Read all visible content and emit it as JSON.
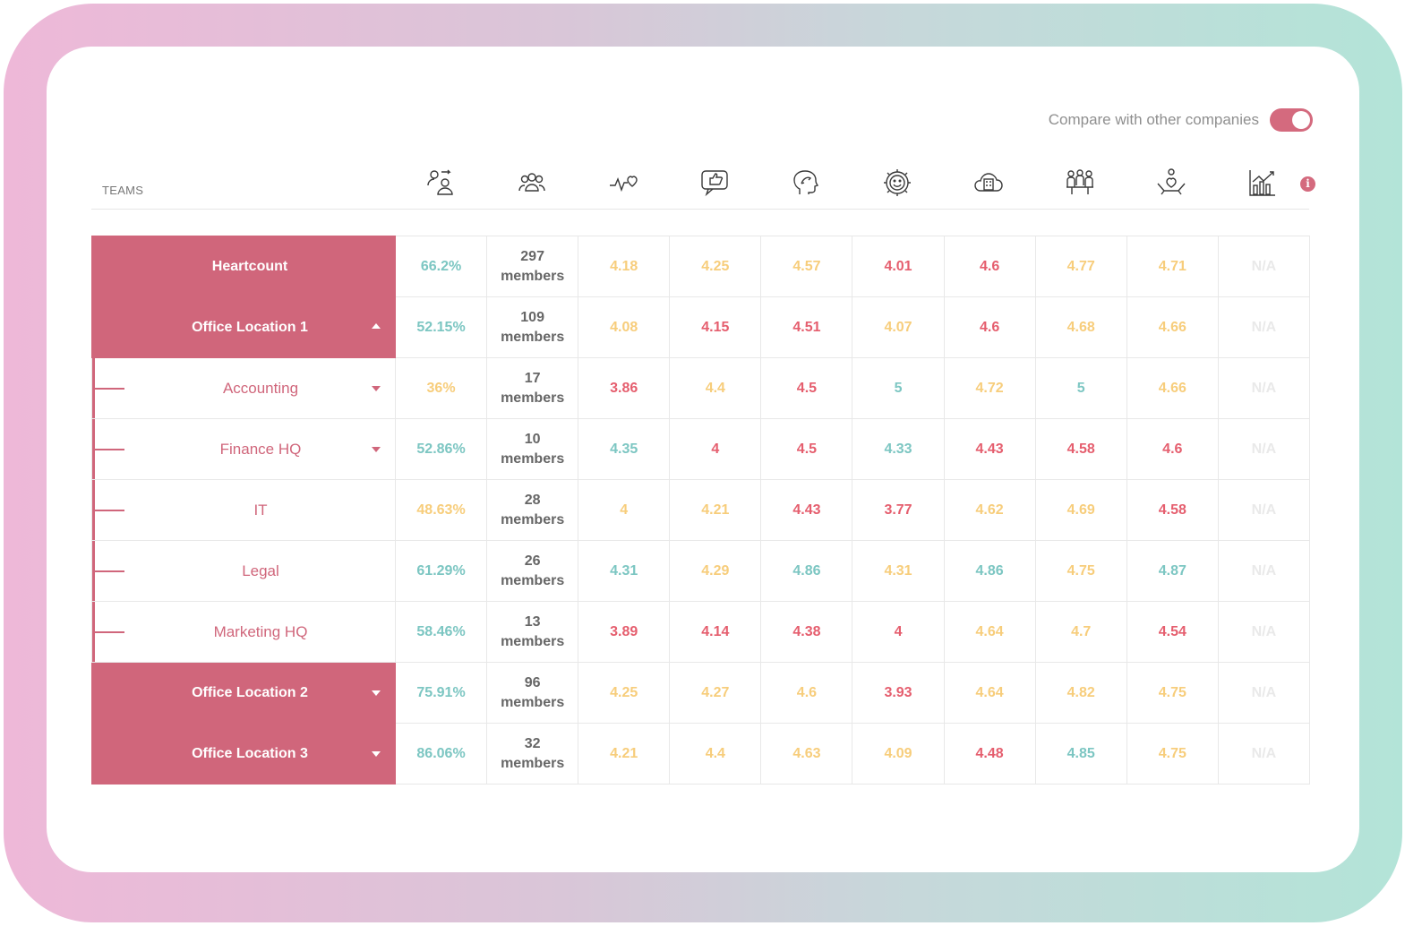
{
  "compare": {
    "label": "Compare with other companies",
    "enabled": true
  },
  "header": {
    "teams_label": "TEAMS"
  },
  "icons": [
    "participation-icon",
    "members-icon",
    "heartbeat-icon",
    "feedback-icon",
    "mind-icon",
    "satisfaction-gear-icon",
    "workplace-cloud-icon",
    "team-meeting-icon",
    "wellbeing-hands-icon",
    "growth-chart-icon"
  ],
  "colors": {
    "accent": "#d0667b",
    "teal": "#7cc6c2",
    "yellow": "#f7cd7b",
    "red": "#e55e6e"
  },
  "rows": [
    {
      "name": "Heartcount",
      "type": "group",
      "caret": "none",
      "participation": "66.2%",
      "participation_color": "teal",
      "members_count": "297",
      "members_word": "members",
      "scores": [
        [
          "4.18",
          "yellow"
        ],
        [
          "4.25",
          "yellow"
        ],
        [
          "4.57",
          "yellow"
        ],
        [
          "4.01",
          "red"
        ],
        [
          "4.6",
          "red"
        ],
        [
          "4.77",
          "yellow"
        ],
        [
          "4.71",
          "yellow"
        ],
        [
          "N/A",
          "na"
        ]
      ]
    },
    {
      "name": "Office Location 1",
      "type": "group",
      "caret": "up",
      "participation": "52.15%",
      "participation_color": "teal",
      "members_count": "109",
      "members_word": "members",
      "scores": [
        [
          "4.08",
          "yellow"
        ],
        [
          "4.15",
          "red"
        ],
        [
          "4.51",
          "red"
        ],
        [
          "4.07",
          "yellow"
        ],
        [
          "4.6",
          "red"
        ],
        [
          "4.68",
          "yellow"
        ],
        [
          "4.66",
          "yellow"
        ],
        [
          "N/A",
          "na"
        ]
      ]
    },
    {
      "name": "Accounting",
      "type": "child",
      "caret": "down",
      "participation": "36%",
      "participation_color": "yellow",
      "members_count": "17",
      "members_word": "members",
      "scores": [
        [
          "3.86",
          "red"
        ],
        [
          "4.4",
          "yellow"
        ],
        [
          "4.5",
          "red"
        ],
        [
          "5",
          "teal"
        ],
        [
          "4.72",
          "yellow"
        ],
        [
          "5",
          "teal"
        ],
        [
          "4.66",
          "yellow"
        ],
        [
          "N/A",
          "na"
        ]
      ]
    },
    {
      "name": "Finance HQ",
      "type": "child",
      "caret": "down",
      "participation": "52.86%",
      "participation_color": "teal",
      "members_count": "10",
      "members_word": "members",
      "scores": [
        [
          "4.35",
          "teal"
        ],
        [
          "4",
          "red"
        ],
        [
          "4.5",
          "red"
        ],
        [
          "4.33",
          "teal"
        ],
        [
          "4.43",
          "red"
        ],
        [
          "4.58",
          "red"
        ],
        [
          "4.6",
          "red"
        ],
        [
          "N/A",
          "na"
        ]
      ]
    },
    {
      "name": "IT",
      "type": "child",
      "caret": "none",
      "participation": "48.63%",
      "participation_color": "yellow",
      "members_count": "28",
      "members_word": "members",
      "scores": [
        [
          "4",
          "yellow"
        ],
        [
          "4.21",
          "yellow"
        ],
        [
          "4.43",
          "red"
        ],
        [
          "3.77",
          "red"
        ],
        [
          "4.62",
          "yellow"
        ],
        [
          "4.69",
          "yellow"
        ],
        [
          "4.58",
          "red"
        ],
        [
          "N/A",
          "na"
        ]
      ]
    },
    {
      "name": "Legal",
      "type": "child",
      "caret": "none",
      "participation": "61.29%",
      "participation_color": "teal",
      "members_count": "26",
      "members_word": "members",
      "scores": [
        [
          "4.31",
          "teal"
        ],
        [
          "4.29",
          "yellow"
        ],
        [
          "4.86",
          "teal"
        ],
        [
          "4.31",
          "yellow"
        ],
        [
          "4.86",
          "teal"
        ],
        [
          "4.75",
          "yellow"
        ],
        [
          "4.87",
          "teal"
        ],
        [
          "N/A",
          "na"
        ]
      ]
    },
    {
      "name": "Marketing HQ",
      "type": "child",
      "caret": "none",
      "participation": "58.46%",
      "participation_color": "teal",
      "members_count": "13",
      "members_word": "members",
      "scores": [
        [
          "3.89",
          "red"
        ],
        [
          "4.14",
          "red"
        ],
        [
          "4.38",
          "red"
        ],
        [
          "4",
          "red"
        ],
        [
          "4.64",
          "yellow"
        ],
        [
          "4.7",
          "yellow"
        ],
        [
          "4.54",
          "red"
        ],
        [
          "N/A",
          "na"
        ]
      ]
    },
    {
      "name": "Office Location 2",
      "type": "group",
      "caret": "down",
      "participation": "75.91%",
      "participation_color": "teal",
      "members_count": "96",
      "members_word": "members",
      "scores": [
        [
          "4.25",
          "yellow"
        ],
        [
          "4.27",
          "yellow"
        ],
        [
          "4.6",
          "yellow"
        ],
        [
          "3.93",
          "red"
        ],
        [
          "4.64",
          "yellow"
        ],
        [
          "4.82",
          "yellow"
        ],
        [
          "4.75",
          "yellow"
        ],
        [
          "N/A",
          "na"
        ]
      ]
    },
    {
      "name": "Office Location 3",
      "type": "group",
      "caret": "down",
      "participation": "86.06%",
      "participation_color": "teal",
      "members_count": "32",
      "members_word": "members",
      "scores": [
        [
          "4.21",
          "yellow"
        ],
        [
          "4.4",
          "yellow"
        ],
        [
          "4.63",
          "yellow"
        ],
        [
          "4.09",
          "yellow"
        ],
        [
          "4.48",
          "red"
        ],
        [
          "4.85",
          "teal"
        ],
        [
          "4.75",
          "yellow"
        ],
        [
          "N/A",
          "na"
        ]
      ]
    }
  ]
}
